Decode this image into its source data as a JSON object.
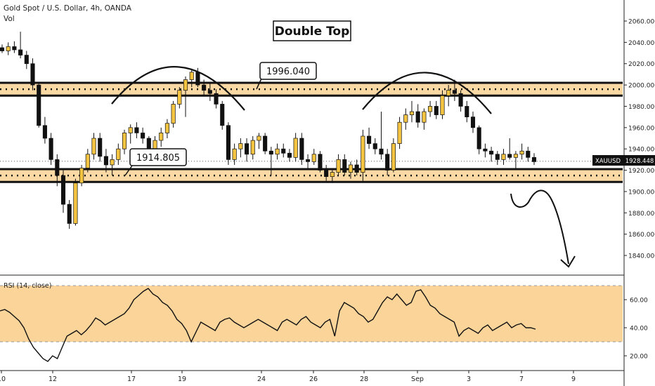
{
  "header": {
    "symbol_title": "Gold Spot / U.S. Dollar, 4h, OANDA",
    "volume_label": "Vol"
  },
  "annotations": {
    "pattern_title": "Double Top",
    "resistance_label": "1996.040",
    "support_label": "1914.805"
  },
  "price_tag": {
    "symbol": "XAUUSD",
    "value": "1928.448"
  },
  "rsi": {
    "label": "RSI (14, close)"
  },
  "colors": {
    "up_candle": "#f5c542",
    "down_candle": "#111111",
    "zone_fill": "#fbd9a4",
    "rsi_band": "#fbd49a",
    "line": "#111111"
  },
  "chart_data": [
    {
      "type": "candlestick",
      "title": "Gold Spot / U.S. Dollar, 4h, OANDA",
      "ylim": [
        1820,
        2070
      ],
      "y_ticks": [
        1840,
        1860,
        1880,
        1900,
        1920,
        1940,
        1960,
        1980,
        2000,
        2020,
        2040,
        2060
      ],
      "y_tick_labels": [
        "1840.000",
        "1860.000",
        "1880.000",
        "1900.000",
        "1920.000",
        "1940.000",
        "1960.000",
        "1980.000",
        "2000.000",
        "2020.000",
        "2040.000",
        "2060.000"
      ],
      "x_tick_labels": [
        "10",
        "12",
        "17",
        "19",
        "24",
        "26",
        "28",
        "Sep",
        "3",
        "7",
        "9"
      ],
      "last_price": 1928.448,
      "zones": [
        {
          "label": "1996.040",
          "low": 1990,
          "high": 2002
        },
        {
          "label": "1914.805",
          "low": 1909,
          "high": 1921
        }
      ],
      "ohlc": [
        [
          2035,
          2038,
          2030,
          2032
        ],
        [
          2032,
          2040,
          2028,
          2036
        ],
        [
          2036,
          2041,
          2030,
          2033
        ],
        [
          2033,
          2050,
          2025,
          2028
        ],
        [
          2028,
          2032,
          2015,
          2020
        ],
        [
          2020,
          2025,
          1995,
          2000
        ],
        [
          2000,
          2002,
          1960,
          1962
        ],
        [
          1962,
          1970,
          1945,
          1950
        ],
        [
          1950,
          1955,
          1925,
          1930
        ],
        [
          1930,
          1935,
          1905,
          1915
        ],
        [
          1915,
          1920,
          1880,
          1888
        ],
        [
          1888,
          1892,
          1865,
          1870
        ],
        [
          1870,
          1912,
          1868,
          1908
        ],
        [
          1908,
          1925,
          1905,
          1922
        ],
        [
          1922,
          1940,
          1918,
          1935
        ],
        [
          1935,
          1955,
          1930,
          1950
        ],
        [
          1950,
          1955,
          1928,
          1933
        ],
        [
          1933,
          1940,
          1918,
          1925
        ],
        [
          1925,
          1935,
          1915,
          1930
        ],
        [
          1930,
          1945,
          1925,
          1940
        ],
        [
          1940,
          1958,
          1935,
          1955
        ],
        [
          1955,
          1963,
          1945,
          1960
        ],
        [
          1960,
          1965,
          1950,
          1955
        ],
        [
          1955,
          1960,
          1945,
          1950
        ],
        [
          1950,
          1952,
          1935,
          1940
        ],
        [
          1940,
          1952,
          1935,
          1948
        ],
        [
          1948,
          1960,
          1942,
          1955
        ],
        [
          1955,
          1968,
          1950,
          1964
        ],
        [
          1964,
          1985,
          1960,
          1982
        ],
        [
          1982,
          1998,
          1978,
          1995
        ],
        [
          1995,
          2008,
          1970,
          2005
        ],
        [
          2005,
          2015,
          1998,
          2012
        ],
        [
          2012,
          2016,
          1998,
          2000
        ],
        [
          2000,
          2005,
          1990,
          1995
        ],
        [
          1995,
          2002,
          1985,
          1992
        ],
        [
          1992,
          1996,
          1978,
          1982
        ],
        [
          1982,
          1985,
          1958,
          1962
        ],
        [
          1962,
          1965,
          1925,
          1930
        ],
        [
          1930,
          1945,
          1925,
          1940
        ],
        [
          1940,
          1950,
          1932,
          1945
        ],
        [
          1945,
          1950,
          1928,
          1935
        ],
        [
          1935,
          1952,
          1930,
          1948
        ],
        [
          1948,
          1955,
          1940,
          1952
        ],
        [
          1952,
          1955,
          1935,
          1938
        ],
        [
          1938,
          1942,
          1915,
          1935
        ],
        [
          1935,
          1945,
          1930,
          1940
        ],
        [
          1940,
          1945,
          1932,
          1936
        ],
        [
          1936,
          1940,
          1928,
          1932
        ],
        [
          1932,
          1955,
          1928,
          1950
        ],
        [
          1950,
          1955,
          1925,
          1930
        ],
        [
          1930,
          1935,
          1922,
          1928
        ],
        [
          1928,
          1940,
          1925,
          1935
        ],
        [
          1935,
          1938,
          1918,
          1920
        ],
        [
          1920,
          1925,
          1910,
          1914
        ],
        [
          1914,
          1920,
          1908,
          1918
        ],
        [
          1918,
          1935,
          1915,
          1930
        ],
        [
          1930,
          1935,
          1915,
          1918
        ],
        [
          1918,
          1928,
          1912,
          1925
        ],
        [
          1925,
          1930,
          1915,
          1918
        ],
        [
          1918,
          1958,
          1910,
          1952
        ],
        [
          1952,
          1960,
          1940,
          1945
        ],
        [
          1945,
          1950,
          1935,
          1940
        ],
        [
          1940,
          1975,
          1930,
          1935
        ],
        [
          1935,
          1940,
          1915,
          1920
        ],
        [
          1920,
          1950,
          1918,
          1945
        ],
        [
          1945,
          1970,
          1940,
          1965
        ],
        [
          1965,
          1978,
          1958,
          1972
        ],
        [
          1972,
          1985,
          1965,
          1975
        ],
        [
          1975,
          1982,
          1960,
          1965
        ],
        [
          1965,
          1978,
          1958,
          1975
        ],
        [
          1975,
          1985,
          1970,
          1980
        ],
        [
          1980,
          1985,
          1968,
          1972
        ],
        [
          1972,
          1995,
          1968,
          1990
        ],
        [
          1990,
          2000,
          1980,
          1995
        ],
        [
          1995,
          2005,
          1985,
          1992
        ],
        [
          1992,
          1995,
          1975,
          1980
        ],
        [
          1980,
          1985,
          1965,
          1970
        ],
        [
          1970,
          1975,
          1955,
          1960
        ],
        [
          1960,
          1962,
          1935,
          1940
        ],
        [
          1940,
          1945,
          1932,
          1938
        ],
        [
          1938,
          1942,
          1928,
          1935
        ],
        [
          1935,
          1938,
          1925,
          1930
        ],
        [
          1930,
          1940,
          1925,
          1935
        ],
        [
          1935,
          1950,
          1930,
          1932
        ],
        [
          1932,
          1938,
          1922,
          1935
        ],
        [
          1935,
          1945,
          1930,
          1938
        ],
        [
          1938,
          1942,
          1928,
          1932
        ],
        [
          1932,
          1936,
          1925,
          1928
        ]
      ]
    },
    {
      "type": "line",
      "title": "RSI (14, close)",
      "ylim": [
        12,
        75
      ],
      "y_ticks": [
        20,
        40,
        60
      ],
      "y_tick_labels": [
        "20.00",
        "40.00",
        "60.00"
      ],
      "band": [
        30,
        70
      ],
      "values": [
        52,
        53,
        51,
        48,
        45,
        40,
        32,
        26,
        22,
        18,
        16,
        20,
        18,
        26,
        34,
        36,
        38,
        35,
        38,
        42,
        47,
        45,
        42,
        44,
        46,
        48,
        50,
        54,
        60,
        63,
        66,
        68,
        64,
        62,
        58,
        56,
        52,
        46,
        43,
        38,
        30,
        37,
        44,
        42,
        40,
        38,
        44,
        46,
        47,
        44,
        42,
        40,
        42,
        44,
        46,
        44,
        42,
        40,
        38,
        44,
        46,
        44,
        42,
        46,
        48,
        44,
        42,
        40,
        44,
        46,
        34,
        52,
        58,
        56,
        54,
        50,
        48,
        44,
        46,
        52,
        58,
        62,
        60,
        64,
        60,
        56,
        58,
        66,
        67,
        62,
        56,
        54,
        50,
        48,
        46,
        44,
        34,
        38,
        40,
        38,
        36,
        40,
        42,
        38,
        40,
        42,
        44,
        40,
        42,
        43,
        40,
        40,
        39
      ]
    }
  ]
}
